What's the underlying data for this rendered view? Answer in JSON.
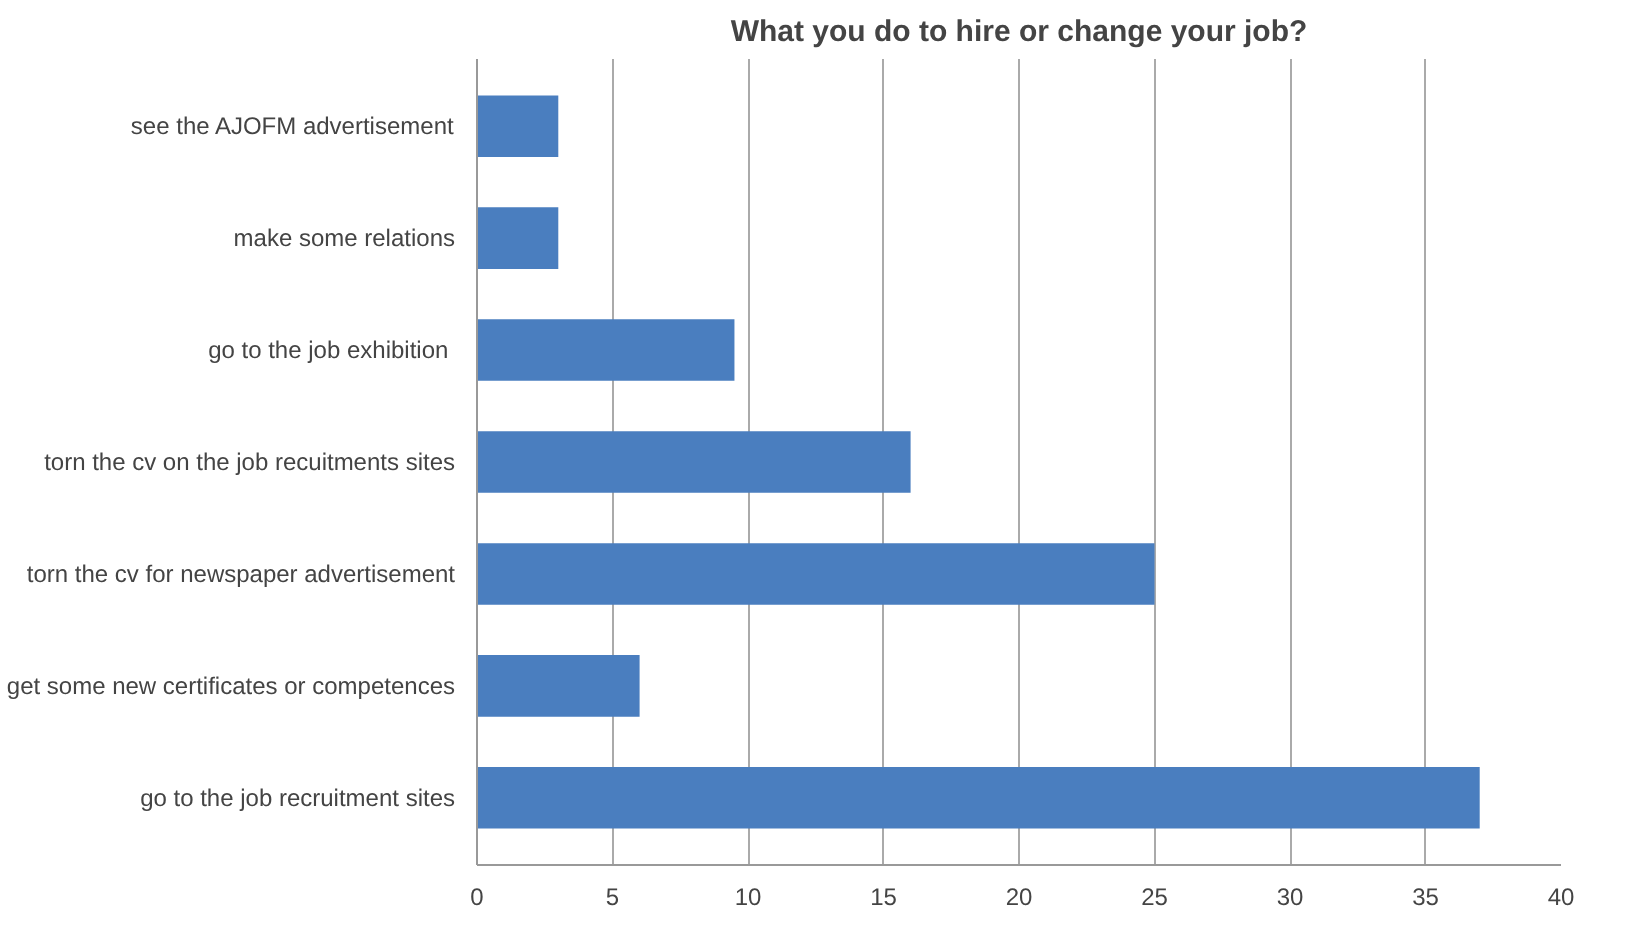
{
  "chart_data": {
    "type": "bar",
    "orientation": "horizontal",
    "title": "What you do to hire or change your job?",
    "categories": [
      "see the AJOFM advertisement",
      "make some relations",
      "go to the job  exhibition",
      "torn the cv on the job recuitments sites",
      "torn the cv for newspaper advertisement",
      "get some new certificates or competences",
      "go to the job recruitment sites"
    ],
    "values": [
      3,
      3,
      9.5,
      16,
      25,
      6,
      37
    ],
    "color": "#4a7ebf",
    "xlim": [
      0,
      40
    ],
    "xticks": [
      0,
      5,
      10,
      15,
      20,
      25,
      30,
      35,
      40
    ],
    "grid": "x"
  }
}
